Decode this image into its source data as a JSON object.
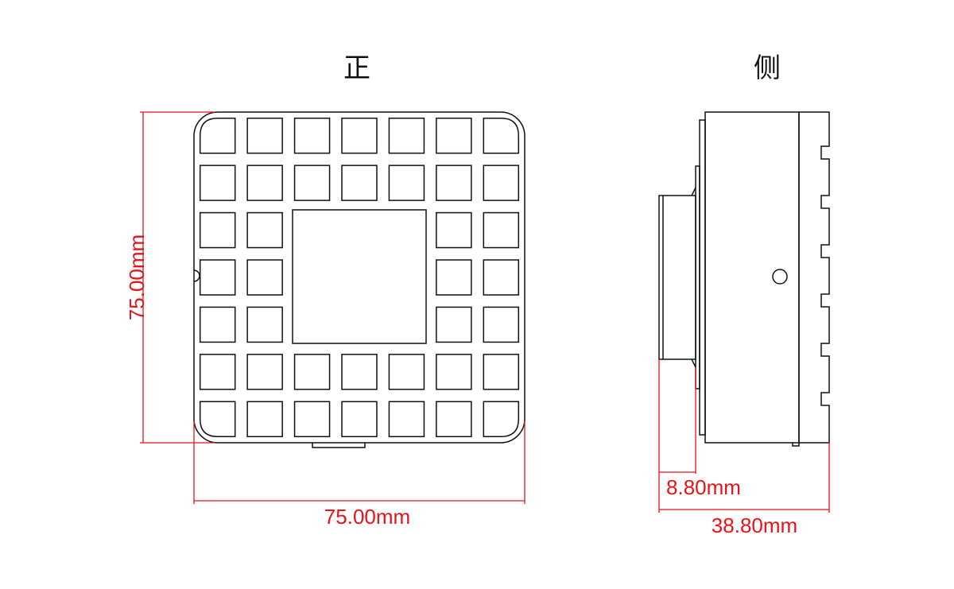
{
  "views": {
    "front_title": "正",
    "side_title": "侧"
  },
  "dimensions": {
    "front_height": "75.00mm",
    "front_width": "75.00mm",
    "side_lens": "8.80mm",
    "side_depth": "38.80mm"
  },
  "colors": {
    "outline": "#111111",
    "dimension": "#e8131a",
    "background": "#ffffff"
  }
}
